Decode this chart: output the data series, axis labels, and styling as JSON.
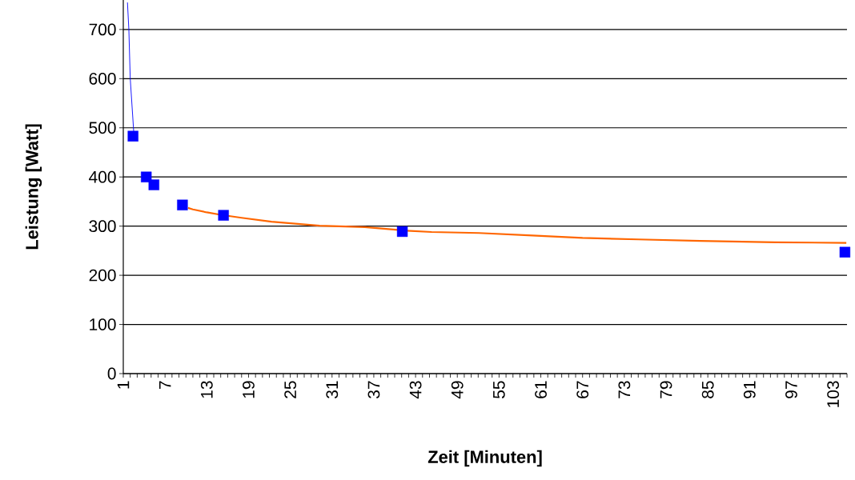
{
  "chart_data": {
    "type": "line",
    "xlabel": "Zeit [Minuten]",
    "ylabel": "Leistung [Watt]",
    "xlim": [
      1,
      105
    ],
    "ylim": [
      0,
      760
    ],
    "xticks": [
      1,
      {
        "value": 2,
        "label": null
      },
      {
        "value": 3,
        "label": null
      },
      {
        "value": 4,
        "label": null
      },
      {
        "value": 5,
        "label": null
      },
      {
        "value": 6,
        "label": null
      },
      7,
      {
        "value": 8,
        "label": null
      },
      {
        "value": 9,
        "label": null
      },
      {
        "value": 10,
        "label": null
      },
      {
        "value": 11,
        "label": null
      },
      {
        "value": 12,
        "label": null
      },
      13,
      {
        "value": 14,
        "label": null
      },
      {
        "value": 15,
        "label": null
      },
      {
        "value": 16,
        "label": null
      },
      {
        "value": 17,
        "label": null
      },
      {
        "value": 18,
        "label": null
      },
      19,
      {
        "value": 20,
        "label": null
      },
      {
        "value": 21,
        "label": null
      },
      {
        "value": 22,
        "label": null
      },
      {
        "value": 23,
        "label": null
      },
      {
        "value": 24,
        "label": null
      },
      25,
      {
        "value": 26,
        "label": null
      },
      {
        "value": 27,
        "label": null
      },
      {
        "value": 28,
        "label": null
      },
      {
        "value": 29,
        "label": null
      },
      {
        "value": 30,
        "label": null
      },
      31,
      {
        "value": 32,
        "label": null
      },
      {
        "value": 33,
        "label": null
      },
      {
        "value": 34,
        "label": null
      },
      {
        "value": 35,
        "label": null
      },
      {
        "value": 36,
        "label": null
      },
      37,
      {
        "value": 38,
        "label": null
      },
      {
        "value": 39,
        "label": null
      },
      {
        "value": 40,
        "label": null
      },
      {
        "value": 41,
        "label": null
      },
      {
        "value": 42,
        "label": null
      },
      43,
      {
        "value": 44,
        "label": null
      },
      {
        "value": 45,
        "label": null
      },
      {
        "value": 46,
        "label": null
      },
      {
        "value": 47,
        "label": null
      },
      {
        "value": 48,
        "label": null
      },
      49,
      {
        "value": 50,
        "label": null
      },
      {
        "value": 51,
        "label": null
      },
      {
        "value": 52,
        "label": null
      },
      {
        "value": 53,
        "label": null
      },
      {
        "value": 54,
        "label": null
      },
      55,
      {
        "value": 56,
        "label": null
      },
      {
        "value": 57,
        "label": null
      },
      {
        "value": 58,
        "label": null
      },
      {
        "value": 59,
        "label": null
      },
      {
        "value": 60,
        "label": null
      },
      61,
      {
        "value": 62,
        "label": null
      },
      {
        "value": 63,
        "label": null
      },
      {
        "value": 64,
        "label": null
      },
      {
        "value": 65,
        "label": null
      },
      {
        "value": 66,
        "label": null
      },
      67,
      {
        "value": 68,
        "label": null
      },
      {
        "value": 69,
        "label": null
      },
      {
        "value": 70,
        "label": null
      },
      {
        "value": 71,
        "label": null
      },
      {
        "value": 72,
        "label": null
      },
      73,
      {
        "value": 74,
        "label": null
      },
      {
        "value": 75,
        "label": null
      },
      {
        "value": 76,
        "label": null
      },
      {
        "value": 77,
        "label": null
      },
      {
        "value": 78,
        "label": null
      },
      79,
      {
        "value": 80,
        "label": null
      },
      {
        "value": 81,
        "label": null
      },
      {
        "value": 82,
        "label": null
      },
      {
        "value": 83,
        "label": null
      },
      {
        "value": 84,
        "label": null
      },
      85,
      {
        "value": 86,
        "label": null
      },
      {
        "value": 87,
        "label": null
      },
      {
        "value": 88,
        "label": null
      },
      {
        "value": 89,
        "label": null
      },
      {
        "value": 90,
        "label": null
      },
      91,
      {
        "value": 92,
        "label": null
      },
      {
        "value": 93,
        "label": null
      },
      {
        "value": 94,
        "label": null
      },
      {
        "value": 95,
        "label": null
      },
      {
        "value": 96,
        "label": null
      },
      97,
      {
        "value": 98,
        "label": null
      },
      {
        "value": 99,
        "label": null
      },
      {
        "value": 100,
        "label": null
      },
      {
        "value": 101,
        "label": null
      },
      {
        "value": 102,
        "label": null
      },
      103,
      {
        "value": 104,
        "label": null
      },
      {
        "value": 105,
        "label": null
      }
    ],
    "yticks": [
      0,
      100,
      200,
      300,
      400,
      500,
      600,
      700
    ],
    "grid": "y",
    "series": [
      {
        "type": "line",
        "color": "#0000ff",
        "marker": "none",
        "x": [
          1.6,
          1.8,
          2.0,
          2.5
        ],
        "values": [
          755,
          700,
          600,
          492
        ]
      },
      {
        "type": "line",
        "color": "#ff6600",
        "marker": "none",
        "x": [
          10.3,
          11,
          13,
          15,
          18,
          22.3,
          29.2,
          35.7,
          41.5,
          45.3,
          52.1,
          59.8,
          67,
          75,
          83.9,
          94.6,
          104.9
        ],
        "values": [
          337,
          334,
          328,
          323,
          317,
          309,
          301,
          298,
          291,
          288,
          286,
          281,
          276,
          273,
          270,
          267,
          266
        ]
      },
      {
        "type": "scatter",
        "color": "#0000ff",
        "marker": "square",
        "x": [
          2.4,
          4.3,
          5.4,
          9.5,
          15.4,
          41.1,
          104.7
        ],
        "values": [
          483,
          400,
          384,
          343,
          322,
          289,
          247
        ]
      }
    ]
  }
}
